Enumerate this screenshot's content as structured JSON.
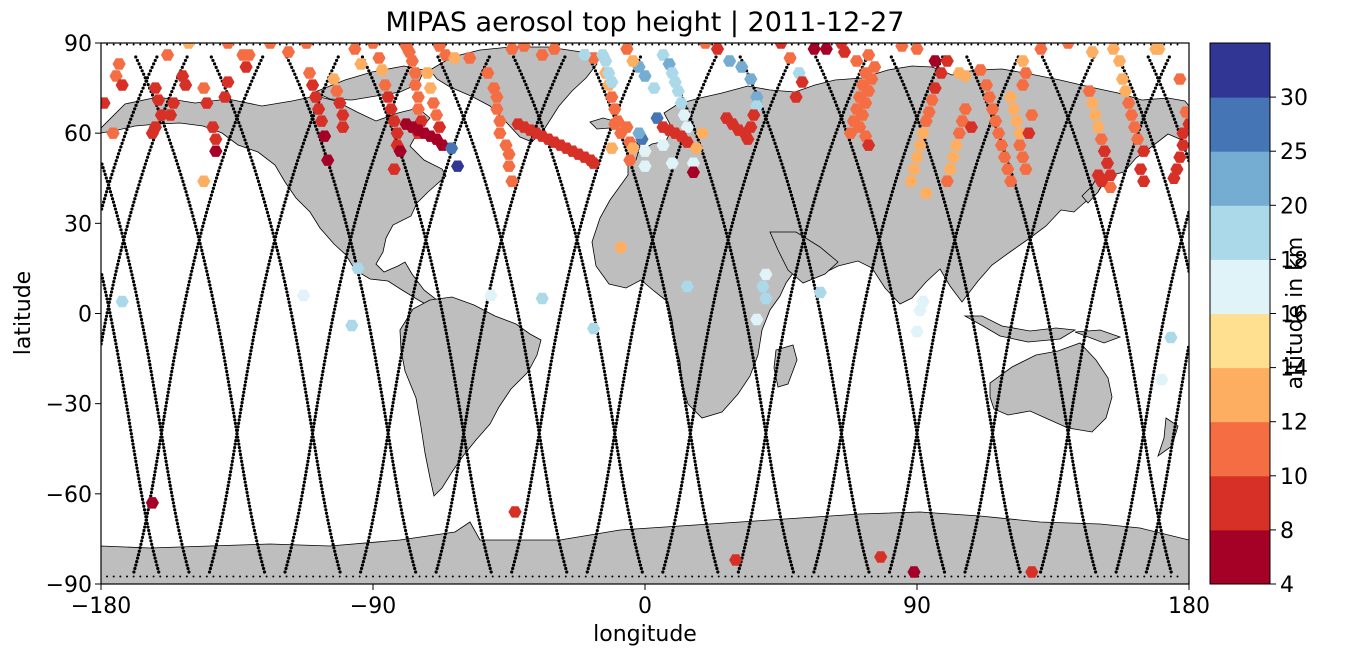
{
  "chart_data": {
    "type": "scatter",
    "title": "MIPAS aerosol top height | 2011-12-27",
    "xlabel": "longitude",
    "ylabel": "latitude",
    "xlim": [
      -180,
      180
    ],
    "ylim": [
      -90,
      90
    ],
    "xticks": [
      -180,
      -90,
      0,
      90,
      180
    ],
    "yticks": [
      -90,
      -60,
      -30,
      0,
      30,
      60,
      90
    ],
    "xtick_labels": [
      "−180",
      "−90",
      "0",
      "90",
      "180"
    ],
    "ytick_labels": [
      "−90",
      "−60",
      "−30",
      "0",
      "30",
      "60",
      "90"
    ],
    "colorbar": {
      "label": "altitude in km",
      "boundaries": [
        4,
        8,
        10,
        12,
        14,
        16,
        18,
        20,
        25,
        30
      ],
      "tick_labels": [
        "4",
        "8",
        "10",
        "12",
        "14",
        "16",
        "18",
        "20",
        "25",
        "30"
      ],
      "colors": [
        "#a50026",
        "#d73027",
        "#f46d43",
        "#fdae61",
        "#fee090",
        "#e0f3f8",
        "#abd9e9",
        "#74add1",
        "#4575b4",
        "#313695"
      ]
    },
    "land_color": "#bebebe",
    "track_color": "#000000",
    "points": [
      [
        -163,
        -63,
        6
      ],
      [
        -173,
        4,
        19
      ],
      [
        -113,
        6,
        17
      ],
      [
        -95,
        15,
        19
      ],
      [
        -97,
        -4,
        19
      ],
      [
        -51,
        6,
        17
      ],
      [
        -34,
        5,
        19
      ],
      [
        -17,
        -5,
        19
      ],
      [
        -8,
        22,
        13
      ],
      [
        14,
        9,
        19
      ],
      [
        40,
        13,
        17
      ],
      [
        39,
        9,
        19
      ],
      [
        40,
        5,
        19
      ],
      [
        37,
        -2,
        17
      ],
      [
        58,
        7,
        19
      ],
      [
        90,
        -6,
        17
      ],
      [
        91,
        1,
        17
      ],
      [
        92,
        4,
        17
      ],
      [
        174,
        -8,
        19
      ],
      [
        171,
        -22,
        17
      ],
      [
        -43,
        -66,
        9
      ],
      [
        30,
        -82,
        9
      ],
      [
        78,
        -81,
        9
      ],
      [
        89,
        -86,
        6
      ],
      [
        128,
        -86,
        9
      ],
      [
        -176,
        60,
        11
      ],
      [
        -175,
        79,
        11
      ],
      [
        -174,
        83,
        11
      ],
      [
        -173,
        76,
        9
      ],
      [
        -179,
        70,
        9
      ],
      [
        -158,
        86,
        11
      ],
      [
        -151,
        90,
        13
      ],
      [
        -138,
        90,
        11
      ],
      [
        -133,
        86,
        11
      ],
      [
        -162,
        75,
        9
      ],
      [
        -161,
        71,
        9
      ],
      [
        -160,
        66,
        9
      ],
      [
        -162,
        62,
        9
      ],
      [
        -163,
        60,
        9
      ],
      [
        -156,
        70,
        9
      ],
      [
        -157,
        66,
        9
      ],
      [
        -153,
        79,
        9
      ],
      [
        -152,
        76,
        9
      ],
      [
        -146,
        75,
        11
      ],
      [
        -145,
        70,
        9
      ],
      [
        -143,
        62,
        9
      ],
      [
        -142,
        58,
        9
      ],
      [
        -142,
        54,
        6
      ],
      [
        -139,
        72,
        9
      ],
      [
        -138,
        77,
        9
      ],
      [
        -132,
        82,
        9
      ],
      [
        -131,
        86,
        11
      ],
      [
        -124,
        90,
        11
      ],
      [
        -118,
        87,
        11
      ],
      [
        -112,
        90,
        11
      ],
      [
        -146,
        44,
        13
      ],
      [
        -111,
        80,
        11
      ],
      [
        -110,
        76,
        9
      ],
      [
        -109,
        72,
        9
      ],
      [
        -108,
        68,
        9
      ],
      [
        -107,
        64,
        9
      ],
      [
        -106,
        59,
        6
      ],
      [
        -105,
        51,
        6
      ],
      [
        -103,
        78,
        13
      ],
      [
        -102,
        74,
        11
      ],
      [
        -101,
        70,
        9
      ],
      [
        -100,
        66,
        9
      ],
      [
        -100,
        62,
        9
      ],
      [
        -96,
        88,
        11
      ],
      [
        -94,
        83,
        13
      ],
      [
        -90,
        90,
        11
      ],
      [
        -88,
        85,
        11
      ],
      [
        -87,
        81,
        13
      ],
      [
        -86,
        76,
        11
      ],
      [
        -85,
        72,
        9
      ],
      [
        -84,
        68,
        9
      ],
      [
        -83,
        64,
        9
      ],
      [
        -82,
        60,
        9
      ],
      [
        -82,
        56,
        9
      ],
      [
        -81,
        54,
        6
      ],
      [
        -83,
        48,
        9
      ],
      [
        -79,
        89,
        11
      ],
      [
        -77,
        84,
        11
      ],
      [
        -76,
        80,
        11
      ],
      [
        -76,
        76,
        11
      ],
      [
        -75,
        72,
        11
      ],
      [
        -75,
        68,
        11
      ],
      [
        -74,
        64,
        9
      ],
      [
        -75,
        60,
        9
      ],
      [
        -78,
        87,
        11
      ],
      [
        -72,
        80,
        13
      ],
      [
        -71,
        75,
        13
      ],
      [
        -70,
        70,
        11
      ],
      [
        -69,
        66,
        11
      ],
      [
        -68,
        62,
        9
      ],
      [
        -79,
        63,
        6
      ],
      [
        -77,
        62,
        6
      ],
      [
        -75,
        61,
        6
      ],
      [
        -73,
        60,
        6
      ],
      [
        -71,
        59,
        6
      ],
      [
        -69,
        58,
        6
      ],
      [
        -67,
        56,
        6
      ],
      [
        -64,
        55,
        25
      ],
      [
        -62,
        49,
        30
      ],
      [
        -68,
        89,
        11
      ],
      [
        -66,
        86,
        11
      ],
      [
        -63,
        85,
        13
      ],
      [
        -58,
        85,
        11
      ],
      [
        -52,
        80,
        11
      ],
      [
        -50,
        75,
        11
      ],
      [
        -49,
        72,
        11
      ],
      [
        -49,
        68,
        11
      ],
      [
        -48,
        64,
        11
      ],
      [
        -48,
        60,
        11
      ],
      [
        -46,
        56,
        11
      ],
      [
        -45,
        53,
        11
      ],
      [
        -45,
        49,
        11
      ],
      [
        -44,
        44,
        11
      ],
      [
        -42,
        63,
        9
      ],
      [
        -40,
        62,
        9
      ],
      [
        -38,
        61,
        9
      ],
      [
        -36,
        60,
        9
      ],
      [
        -34,
        59,
        9
      ],
      [
        -32,
        58,
        9
      ],
      [
        -30,
        57,
        9
      ],
      [
        -28,
        56,
        9
      ],
      [
        -26,
        55,
        9
      ],
      [
        -24,
        54,
        9
      ],
      [
        -22,
        53,
        9
      ],
      [
        -20,
        52,
        9
      ],
      [
        -18,
        51,
        9
      ],
      [
        -17,
        50,
        9
      ],
      [
        -44,
        88,
        11
      ],
      [
        -40,
        89,
        11
      ],
      [
        -34,
        86,
        11
      ],
      [
        -30,
        88,
        11
      ],
      [
        -20,
        86,
        11
      ],
      [
        -17,
        85,
        11
      ],
      [
        -13,
        80,
        13
      ],
      [
        -12,
        76,
        13
      ],
      [
        -11,
        72,
        11
      ],
      [
        -10,
        68,
        11
      ],
      [
        -9,
        64,
        11
      ],
      [
        -8,
        60,
        11
      ],
      [
        -5,
        57,
        11
      ],
      [
        -5,
        51,
        11
      ],
      [
        -10,
        63,
        11
      ],
      [
        -6,
        62,
        11
      ],
      [
        -13,
        84,
        19
      ],
      [
        -12,
        80,
        19
      ],
      [
        -11,
        77,
        19
      ],
      [
        -2,
        82,
        20
      ],
      [
        0,
        79,
        20
      ],
      [
        -6,
        88,
        11
      ],
      [
        -4,
        84,
        13
      ],
      [
        3,
        75,
        19
      ],
      [
        -1,
        58,
        25
      ],
      [
        -2,
        60,
        21
      ],
      [
        -20,
        86,
        19
      ],
      [
        -14,
        86,
        19
      ],
      [
        6,
        86,
        19
      ],
      [
        8,
        83,
        21
      ],
      [
        9,
        80,
        19
      ],
      [
        10,
        77,
        19
      ],
      [
        11,
        74,
        19
      ],
      [
        12,
        70,
        19
      ],
      [
        13,
        66,
        17
      ],
      [
        14,
        62,
        17
      ],
      [
        -11,
        55,
        13
      ],
      [
        -4,
        55,
        13
      ],
      [
        0,
        54,
        17
      ],
      [
        6,
        56,
        17
      ],
      [
        9,
        50,
        17
      ],
      [
        0,
        49,
        17
      ],
      [
        4,
        65,
        25
      ],
      [
        6,
        62,
        9
      ],
      [
        8,
        61,
        9
      ],
      [
        10,
        60,
        9
      ],
      [
        12,
        59,
        9
      ],
      [
        14,
        57,
        9
      ],
      [
        17,
        55,
        13
      ],
      [
        16,
        50,
        17
      ],
      [
        19,
        60,
        13
      ],
      [
        16,
        47,
        6
      ],
      [
        20,
        90,
        11
      ],
      [
        24,
        88,
        9
      ],
      [
        28,
        84,
        21
      ],
      [
        32,
        82,
        20
      ],
      [
        35,
        78,
        20
      ],
      [
        37,
        72,
        21
      ],
      [
        37,
        69,
        19
      ],
      [
        36,
        66,
        9
      ],
      [
        35,
        62,
        9
      ],
      [
        34,
        58,
        9
      ],
      [
        27,
        65,
        9
      ],
      [
        29,
        63,
        9
      ],
      [
        31,
        61,
        9
      ],
      [
        33,
        60,
        9
      ],
      [
        45,
        90,
        9
      ],
      [
        48,
        85,
        11
      ],
      [
        51,
        80,
        19
      ],
      [
        52,
        77,
        9
      ],
      [
        50,
        72,
        9
      ],
      [
        56,
        88,
        6
      ],
      [
        60,
        88,
        6
      ],
      [
        65,
        90,
        9
      ],
      [
        66,
        87,
        9
      ],
      [
        70,
        84,
        11
      ],
      [
        73,
        80,
        11
      ],
      [
        72,
        76,
        11
      ],
      [
        71,
        72,
        11
      ],
      [
        70,
        68,
        11
      ],
      [
        69,
        64,
        11
      ],
      [
        68,
        60,
        11
      ],
      [
        74,
        86,
        11
      ],
      [
        76,
        82,
        11
      ],
      [
        75,
        78,
        11
      ],
      [
        74,
        74,
        11
      ],
      [
        73,
        70,
        11
      ],
      [
        72,
        66,
        11
      ],
      [
        71,
        62,
        11
      ],
      [
        73,
        59,
        11
      ],
      [
        74,
        56,
        9
      ],
      [
        85,
        89,
        11
      ],
      [
        90,
        88,
        11
      ],
      [
        96,
        84,
        6
      ],
      [
        98,
        80,
        9
      ],
      [
        96,
        75,
        9
      ],
      [
        95,
        71,
        11
      ],
      [
        94,
        67,
        11
      ],
      [
        93,
        64,
        11
      ],
      [
        92,
        60,
        13
      ],
      [
        91,
        56,
        13
      ],
      [
        90,
        52,
        13
      ],
      [
        89,
        48,
        13
      ],
      [
        88,
        44,
        13
      ],
      [
        93,
        40,
        13
      ],
      [
        100,
        44,
        11
      ],
      [
        101,
        48,
        13
      ],
      [
        102,
        52,
        13
      ],
      [
        103,
        56,
        13
      ],
      [
        104,
        60,
        11
      ],
      [
        105,
        64,
        11
      ],
      [
        106,
        68,
        11
      ],
      [
        104,
        80,
        13
      ],
      [
        106,
        79,
        13
      ],
      [
        100,
        84,
        9
      ],
      [
        108,
        62,
        9
      ],
      [
        111,
        81,
        11
      ],
      [
        113,
        76,
        11
      ],
      [
        114,
        72,
        11
      ],
      [
        115,
        68,
        11
      ],
      [
        116,
        64,
        11
      ],
      [
        117,
        60,
        11
      ],
      [
        118,
        56,
        11
      ],
      [
        119,
        52,
        11
      ],
      [
        120,
        48,
        11
      ],
      [
        121,
        44,
        11
      ],
      [
        121,
        72,
        13
      ],
      [
        122,
        68,
        13
      ],
      [
        123,
        64,
        13
      ],
      [
        124,
        60,
        13
      ],
      [
        124,
        56,
        11
      ],
      [
        125,
        52,
        11
      ],
      [
        126,
        48,
        11
      ],
      [
        127,
        60,
        9
      ],
      [
        128,
        66,
        11
      ],
      [
        125,
        84,
        13
      ],
      [
        126,
        80,
        11
      ],
      [
        125,
        76,
        11
      ],
      [
        131,
        88,
        11
      ],
      [
        140,
        90,
        11
      ],
      [
        148,
        87,
        13
      ],
      [
        147,
        74,
        11
      ],
      [
        148,
        70,
        13
      ],
      [
        149,
        66,
        13
      ],
      [
        150,
        62,
        13
      ],
      [
        151,
        58,
        11
      ],
      [
        152,
        54,
        9
      ],
      [
        153,
        50,
        9
      ],
      [
        154,
        46,
        9
      ],
      [
        154,
        42,
        11
      ],
      [
        155,
        88,
        13
      ],
      [
        157,
        84,
        13
      ],
      [
        158,
        78,
        13
      ],
      [
        159,
        74,
        13
      ],
      [
        160,
        70,
        11
      ],
      [
        161,
        66,
        11
      ],
      [
        162,
        62,
        11
      ],
      [
        163,
        58,
        11
      ],
      [
        165,
        54,
        9
      ],
      [
        164,
        48,
        9
      ],
      [
        165,
        44,
        9
      ],
      [
        150,
        46,
        9
      ],
      [
        151,
        44,
        9
      ],
      [
        169,
        88,
        13
      ],
      [
        170,
        88,
        13
      ],
      [
        177,
        78,
        11
      ],
      [
        179,
        67,
        11
      ],
      [
        180,
        63,
        9
      ],
      [
        178,
        60,
        9
      ],
      [
        178,
        56,
        9
      ],
      [
        177,
        52,
        9
      ],
      [
        176,
        48,
        9
      ],
      [
        175,
        45,
        9
      ]
    ]
  }
}
